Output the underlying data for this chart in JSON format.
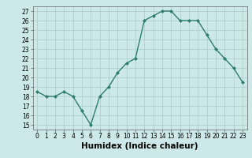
{
  "x": [
    0,
    1,
    2,
    3,
    4,
    5,
    6,
    7,
    8,
    9,
    10,
    11,
    12,
    13,
    14,
    15,
    16,
    17,
    18,
    19,
    20,
    21,
    22,
    23
  ],
  "y": [
    18.5,
    18,
    18,
    18.5,
    18,
    16.5,
    15,
    18,
    19,
    20.5,
    21.5,
    22,
    26,
    26.5,
    27,
    27,
    26,
    26,
    26,
    24.5,
    23,
    22,
    21,
    19.5
  ],
  "line_color": "#2e7d6e",
  "marker": "D",
  "marker_size": 2,
  "bg_color": "#cce8e8",
  "grid_color": "#aacccc",
  "xlabel": "Humidex (Indice chaleur)",
  "xlim": [
    -0.5,
    23.5
  ],
  "ylim": [
    14.5,
    27.5
  ],
  "yticks": [
    15,
    16,
    17,
    18,
    19,
    20,
    21,
    22,
    23,
    24,
    25,
    26,
    27
  ],
  "xticks": [
    0,
    1,
    2,
    3,
    4,
    5,
    6,
    7,
    8,
    9,
    10,
    11,
    12,
    13,
    14,
    15,
    16,
    17,
    18,
    19,
    20,
    21,
    22,
    23
  ],
  "xlabel_fontsize": 7.5,
  "tick_fontsize": 5.5,
  "line_width": 1.0
}
